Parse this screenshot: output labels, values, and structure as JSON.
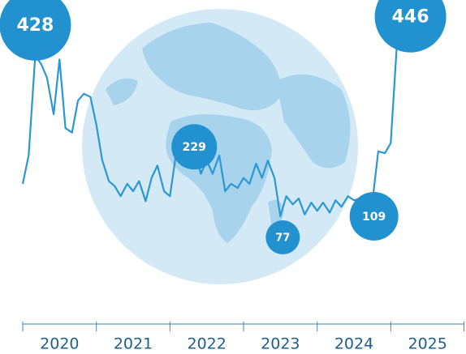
{
  "chart_data": {
    "type": "line",
    "x": [
      2020.0,
      2020.08,
      2020.17,
      2020.25,
      2020.33,
      2020.42,
      2020.5,
      2020.58,
      2020.67,
      2020.75,
      2020.83,
      2020.92,
      2021.0,
      2021.08,
      2021.17,
      2021.25,
      2021.33,
      2021.42,
      2021.5,
      2021.58,
      2021.67,
      2021.75,
      2021.83,
      2021.92,
      2022.0,
      2022.08,
      2022.17,
      2022.25,
      2022.33,
      2022.42,
      2022.5,
      2022.58,
      2022.67,
      2022.75,
      2022.83,
      2022.92,
      2023.0,
      2023.08,
      2023.17,
      2023.25,
      2023.33,
      2023.42,
      2023.5,
      2023.58,
      2023.67,
      2023.75,
      2023.83,
      2023.92,
      2024.0,
      2024.08,
      2024.17,
      2024.25,
      2024.33,
      2024.42,
      2024.5,
      2024.58,
      2024.67,
      2024.75,
      2024.83,
      2024.92,
      2025.0,
      2025.08
    ],
    "series": [
      {
        "color": "#2b97d4",
        "values": [
          148,
          210,
          428,
          410,
          380,
          300,
          420,
          270,
          260,
          330,
          345,
          338,
          277,
          200,
          154,
          143,
          121,
          148,
          132,
          154,
          110,
          161,
          188,
          132,
          121,
          210,
          188,
          210,
          229,
          170,
          199,
          170,
          210,
          132,
          148,
          139,
          161,
          148,
          192,
          161,
          199,
          161,
          77,
          121,
          103,
          116,
          81,
          107,
          89,
          107,
          85,
          112,
          98,
          121,
          112,
          116,
          125,
          109,
          219,
          215,
          237,
          446
        ]
      }
    ],
    "xlim": [
      2020,
      2026
    ],
    "xticks": [
      2020,
      2021,
      2022,
      2023,
      2024,
      2025
    ],
    "ylim": [
      -200,
      550
    ],
    "grid": false
  }
}
